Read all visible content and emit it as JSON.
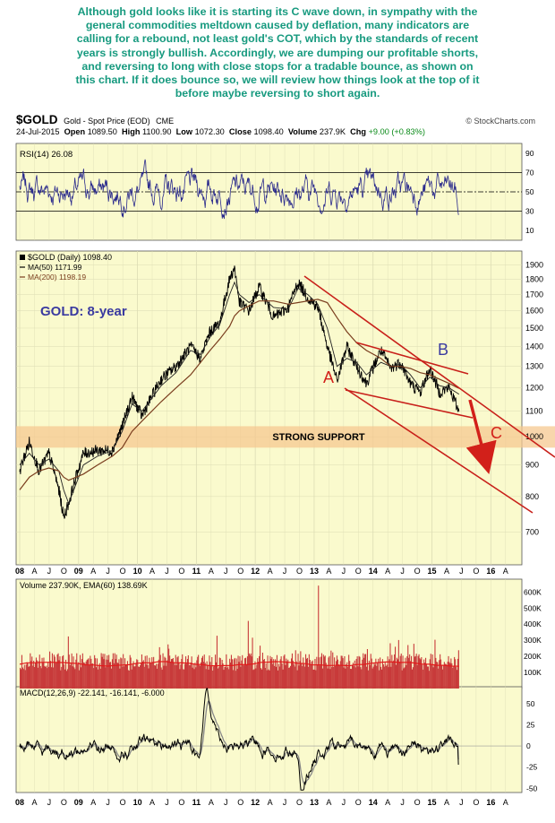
{
  "commentary": [
    "Although gold looks like it is starting its C wave down, in sympathy with the",
    "general commodities meltdown caused by deflation, many indicators are",
    "calling for a rebound, not least gold's COT, which by the standards of recent",
    "years is strongly bullish. Accordingly, we are dumping our profitable shorts,",
    "and reversing to long with close stops for a tradable bounce, as shown on",
    "this chart. If it does bounce so, we will review how things look at the top of it",
    "before maybe reversing to short again."
  ],
  "header": {
    "symbol": "$GOLD",
    "description": "Gold - Spot Price (EOD)",
    "exchange": "CME",
    "credit": "© StockCharts.com",
    "date": "24-Jul-2015",
    "open_label": "Open",
    "open": "1089.50",
    "high_label": "High",
    "high": "1100.90",
    "low_label": "Low",
    "low": "1072.30",
    "close_label": "Close",
    "close": "1098.40",
    "volume_label": "Volume",
    "volume": "237.9K",
    "chg_label": "Chg",
    "chg": "+9.00 (+0.83%)"
  },
  "colors": {
    "panel_bg": "#fafacd",
    "grid": "#dcdcb4",
    "rsi_line": "#2a2a8c",
    "price_line": "#000000",
    "ma200": "#7a3d1e",
    "trend_lines": "#c8201a",
    "annotation_red": "#d2201a",
    "annotation_blue": "#3a3aa0",
    "support_band": "#f6c890",
    "volume_bars": "#c83b3b",
    "ema_line": "#e31a1a",
    "macd_line": "#000000",
    "macd_signal": "#888888",
    "commentary_text": "#179a7f"
  },
  "chart_data": {
    "type": "line",
    "x_axis": {
      "ticks": [
        "08",
        "A",
        "J",
        "O",
        "09",
        "A",
        "J",
        "O",
        "10",
        "A",
        "J",
        "O",
        "11",
        "A",
        "J",
        "O",
        "12",
        "A",
        "J",
        "O",
        "13",
        "A",
        "J",
        "O",
        "14",
        "A",
        "J",
        "O",
        "15",
        "A",
        "J",
        "O",
        "16",
        "A"
      ],
      "range": [
        "2008-01",
        "2016-06"
      ]
    },
    "rsi": {
      "label": "RSI(14) 26.08",
      "last": 26.08,
      "ylim": [
        0,
        100
      ],
      "ticks": [
        90,
        70,
        50,
        30,
        10
      ],
      "levels": [
        70,
        50,
        30
      ]
    },
    "price": {
      "legend": {
        "main": "$GOLD (Daily) 1098.40",
        "ma50": "MA(50) 1171.99",
        "ma200": "MA(200) 1198.19"
      },
      "scale": "log",
      "ylim": [
        620,
        2000
      ],
      "ticks": [
        1900,
        1800,
        1700,
        1600,
        1500,
        1400,
        1300,
        1200,
        1100,
        1000,
        900,
        800,
        700
      ],
      "title_annotation": "GOLD: 8-year",
      "support_label": "STRONG SUPPORT",
      "support_range": [
        960,
        1040
      ],
      "wave_labels": [
        "A",
        "B",
        "C"
      ],
      "x": [
        "2008-01",
        "2008-03",
        "2008-05",
        "2008-07",
        "2008-09",
        "2008-10",
        "2008-11",
        "2009-02",
        "2009-05",
        "2009-08",
        "2009-10",
        "2009-12",
        "2010-02",
        "2010-06",
        "2010-09",
        "2010-12",
        "2011-02",
        "2011-04",
        "2011-06",
        "2011-08",
        "2011-09",
        "2011-10",
        "2011-12",
        "2012-02",
        "2012-05",
        "2012-08",
        "2012-10",
        "2012-12",
        "2013-02",
        "2013-04",
        "2013-06",
        "2013-08",
        "2013-10",
        "2013-12",
        "2014-03",
        "2014-05",
        "2014-07",
        "2014-09",
        "2014-11",
        "2015-01",
        "2015-03",
        "2015-05",
        "2015-07"
      ],
      "close": [
        880,
        980,
        880,
        940,
        820,
        740,
        780,
        940,
        950,
        950,
        1040,
        1160,
        1080,
        1240,
        1300,
        1400,
        1340,
        1480,
        1530,
        1800,
        1880,
        1650,
        1600,
        1750,
        1560,
        1620,
        1780,
        1680,
        1620,
        1400,
        1230,
        1400,
        1300,
        1220,
        1380,
        1290,
        1320,
        1220,
        1180,
        1290,
        1180,
        1200,
        1098
      ],
      "ma50": [
        900,
        940,
        900,
        920,
        880,
        820,
        780,
        900,
        930,
        950,
        1020,
        1130,
        1100,
        1210,
        1270,
        1380,
        1360,
        1450,
        1520,
        1700,
        1780,
        1700,
        1650,
        1700,
        1620,
        1610,
        1740,
        1700,
        1640,
        1500,
        1300,
        1340,
        1320,
        1260,
        1320,
        1300,
        1310,
        1260,
        1200,
        1250,
        1210,
        1200,
        1172
      ],
      "ma200": [
        820,
        860,
        880,
        890,
        880,
        860,
        850,
        870,
        900,
        930,
        960,
        1020,
        1060,
        1140,
        1200,
        1260,
        1320,
        1380,
        1440,
        1510,
        1570,
        1600,
        1630,
        1660,
        1660,
        1640,
        1650,
        1660,
        1670,
        1650,
        1560,
        1480,
        1420,
        1380,
        1340,
        1300,
        1300,
        1290,
        1270,
        1260,
        1240,
        1220,
        1198
      ]
    },
    "volume": {
      "label": "Volume 237.90K, EMA(60) 138.69K",
      "ylim": [
        0,
        680
      ],
      "ticks": [
        "600K",
        "500K",
        "400K",
        "300K",
        "200K",
        "100K"
      ],
      "tick_values": [
        600,
        500,
        400,
        300,
        200,
        100
      ],
      "ema_last_k": 138.69,
      "last_k": 237.9
    },
    "macd": {
      "label": "MACD(12,26,9) -22.141, -16.141, -6.000",
      "ylim": [
        -55,
        70
      ],
      "ticks": [
        50,
        25,
        0,
        -25,
        -50
      ]
    }
  }
}
